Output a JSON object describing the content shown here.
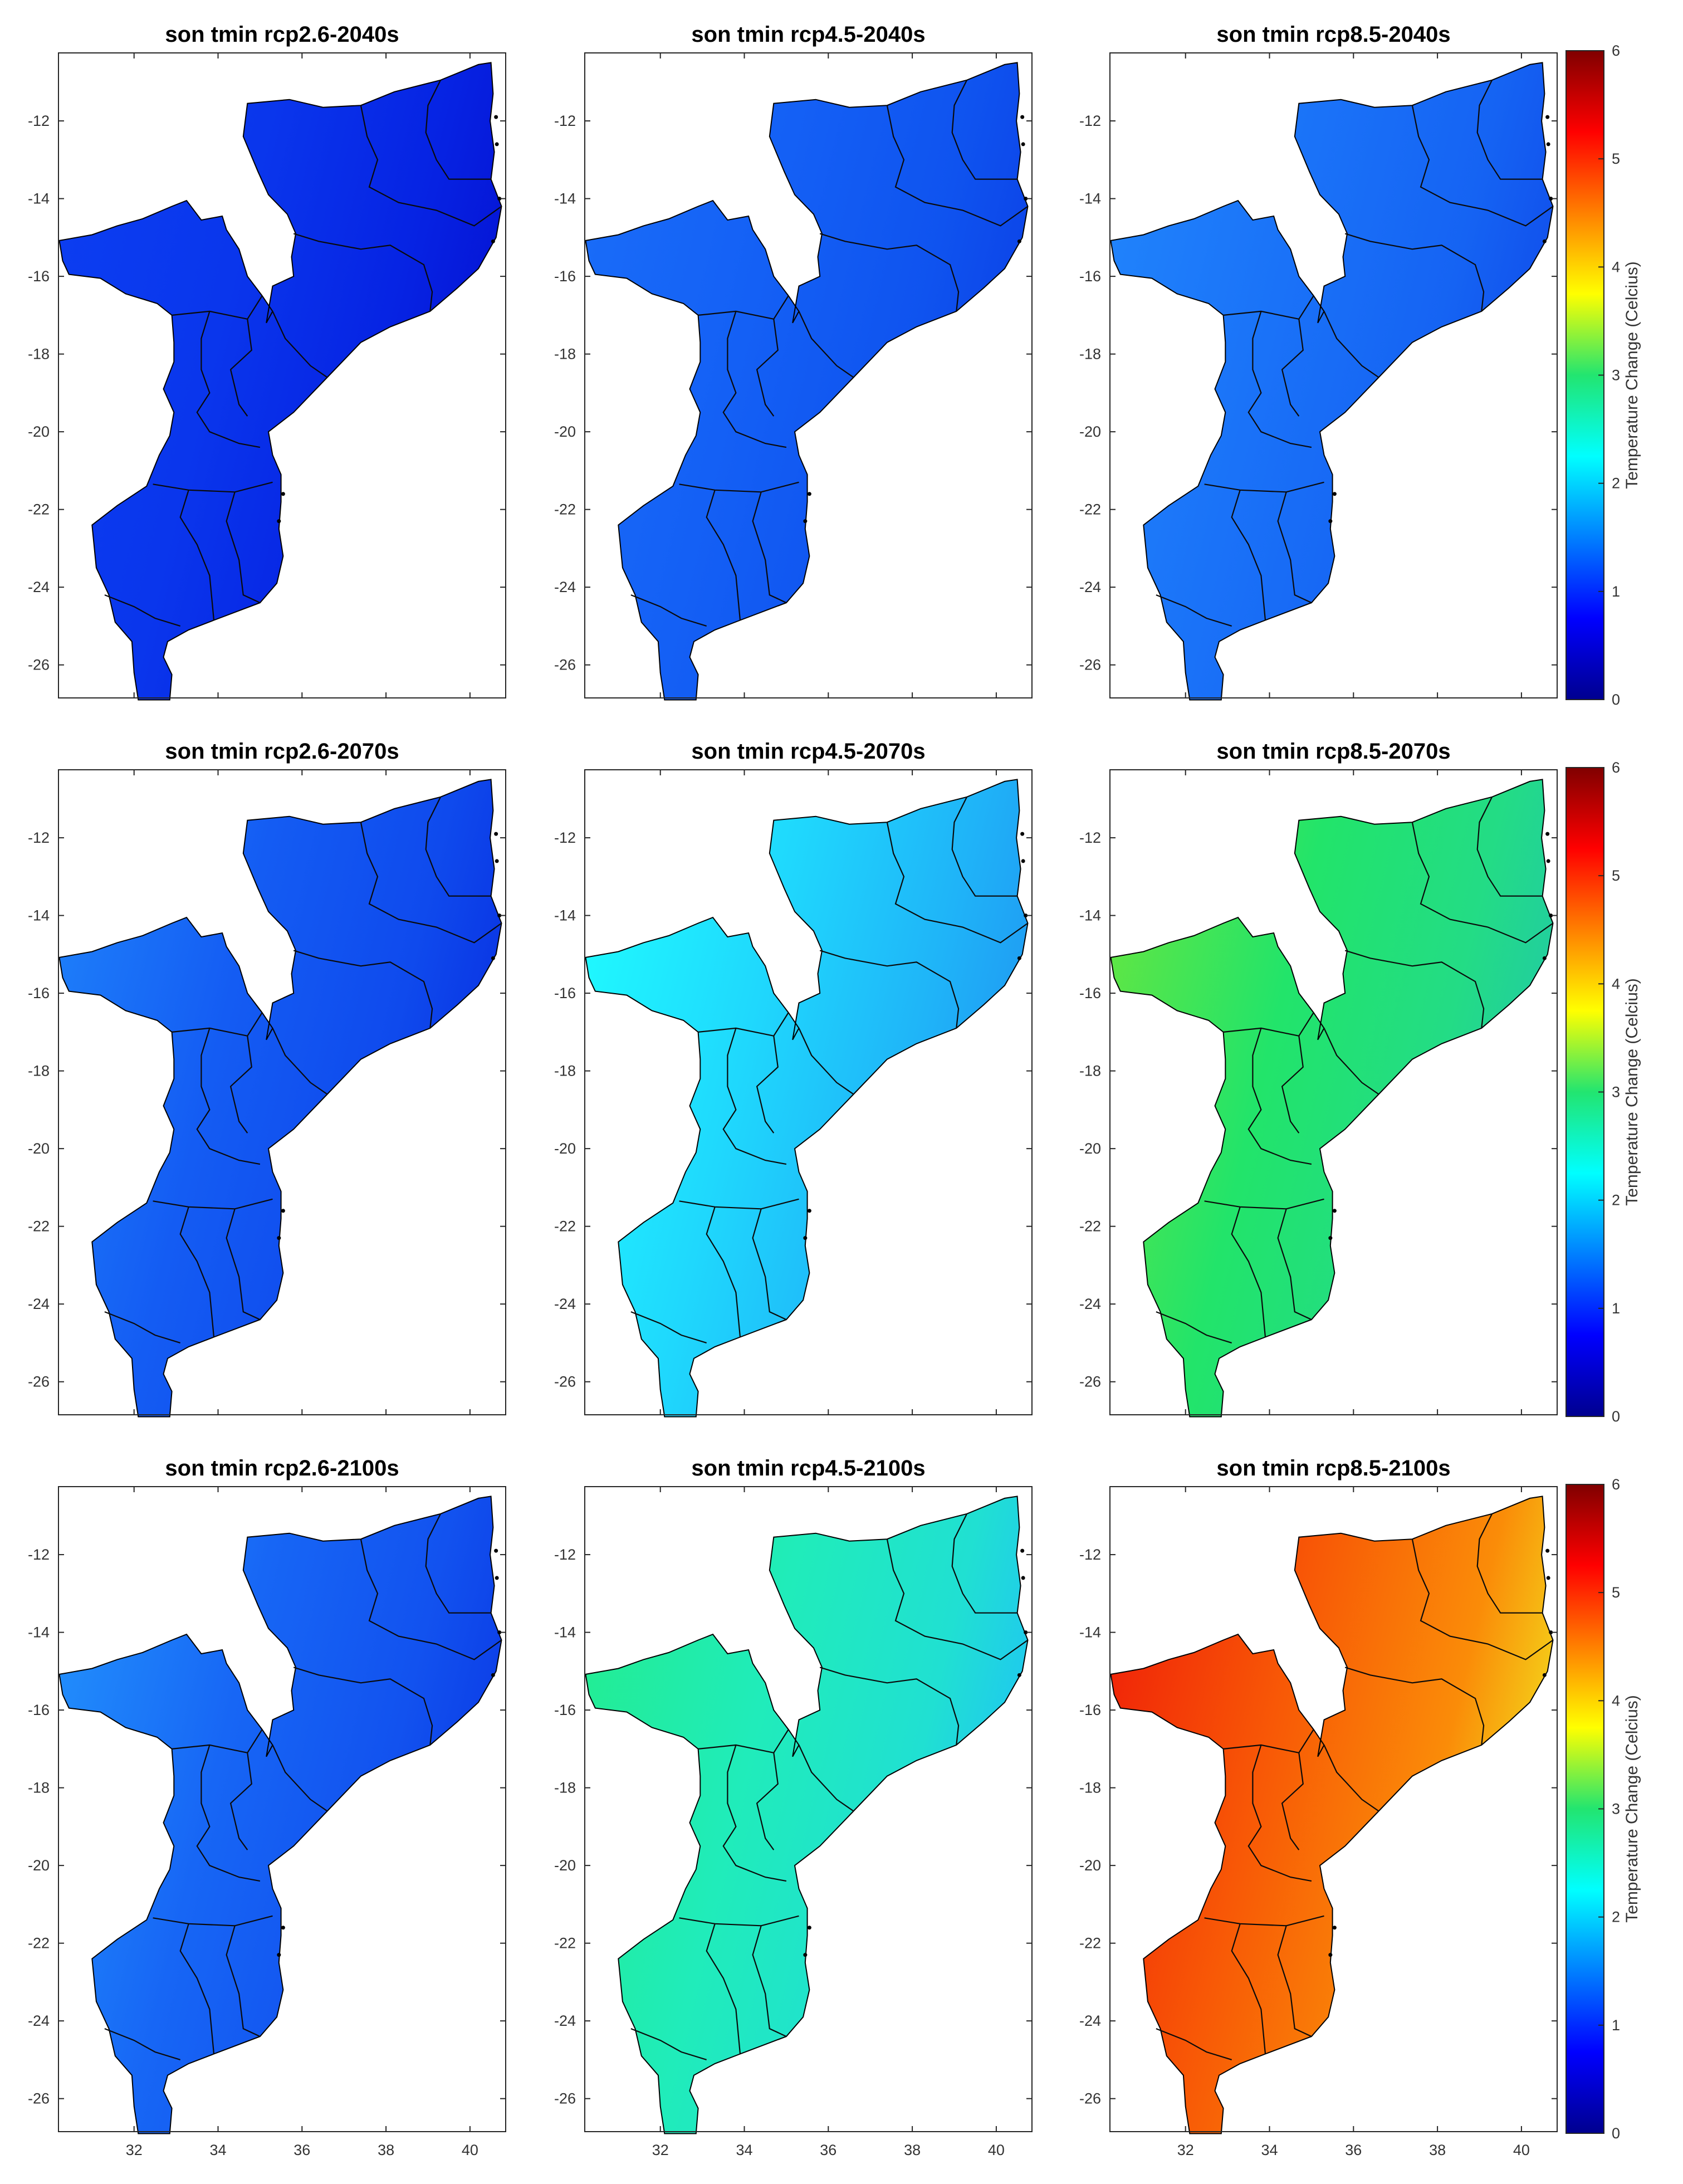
{
  "figure": {
    "variable": "son tmin",
    "colormap": "jet",
    "colorbar_label": "Temperature Change (Celcius)",
    "colorbar_ticks": [
      "0",
      "1",
      "2",
      "3",
      "4",
      "5",
      "6"
    ],
    "colorbar_range": [
      0,
      6
    ],
    "x_ticks": [
      "32",
      "34",
      "36",
      "38",
      "40"
    ],
    "y_ticks": [
      "-12",
      "-14",
      "-16",
      "-18",
      "-20",
      "-22",
      "-24",
      "-26"
    ]
  },
  "chart_data": [
    {
      "type": "heatmap",
      "title": "son tmin rcp2.6-2040s",
      "scenario": "rcp2.6",
      "period": "2040s",
      "mean_change": 1.05,
      "colors": {
        "west": "#0c3ff2",
        "center": "#0a36ec",
        "east": "#0623e3",
        "coast": "#0515d6"
      }
    },
    {
      "type": "heatmap",
      "title": "son tmin rcp4.5-2040s",
      "scenario": "rcp4.5",
      "period": "2040s",
      "mean_change": 1.35,
      "colors": {
        "west": "#1a6ef9",
        "center": "#1460f5",
        "east": "#0f53ef",
        "coast": "#0c44e8"
      }
    },
    {
      "type": "heatmap",
      "title": "son tmin rcp8.5-2040s",
      "scenario": "rcp8.5",
      "period": "2040s",
      "mean_change": 1.4,
      "colors": {
        "west": "#2186fc",
        "center": "#1a72f8",
        "east": "#1563f3",
        "coast": "#1150ec"
      }
    },
    {
      "type": "heatmap",
      "title": "son tmin rcp2.6-2070s",
      "scenario": "rcp2.6",
      "period": "2070s",
      "mean_change": 1.2,
      "colors": {
        "west": "#1f84fb",
        "center": "#145cf3",
        "east": "#0f4aed",
        "coast": "#0a35e4"
      }
    },
    {
      "type": "heatmap",
      "title": "son tmin rcp4.5-2070s",
      "scenario": "rcp4.5",
      "period": "2070s",
      "mean_change": 2.0,
      "colors": {
        "west": "#1fffff",
        "center": "#1fd8fd",
        "east": "#1fb4f8",
        "coast": "#1f9cf3"
      }
    },
    {
      "type": "heatmap",
      "title": "son tmin rcp8.5-2070s",
      "scenario": "rcp8.5",
      "period": "2070s",
      "mean_change": 3.2,
      "colors": {
        "west": "#6be63d",
        "center": "#22e46a",
        "east": "#23dc85",
        "coast": "#22cda0"
      }
    },
    {
      "type": "heatmap",
      "title": "son tmin rcp2.6-2100s",
      "scenario": "rcp2.6",
      "period": "2100s",
      "mean_change": 1.25,
      "colors": {
        "west": "#2395fd",
        "center": "#1766f5",
        "east": "#1252ef",
        "coast": "#0c3ee7"
      }
    },
    {
      "type": "heatmap",
      "title": "son tmin rcp4.5-2100s",
      "scenario": "rcp4.5",
      "period": "2100s",
      "mean_change": 2.5,
      "colors": {
        "west": "#23ed8c",
        "center": "#20ecba",
        "east": "#20e0d2",
        "coast": "#1fc8f0"
      }
    },
    {
      "type": "heatmap",
      "title": "son tmin rcp8.5-2100s",
      "scenario": "rcp8.5",
      "period": "2100s",
      "mean_change": 4.7,
      "colors": {
        "west": "#ef1a08",
        "center": "#f85a06",
        "east": "#fa8c08",
        "coast": "#f4d31a"
      }
    }
  ]
}
